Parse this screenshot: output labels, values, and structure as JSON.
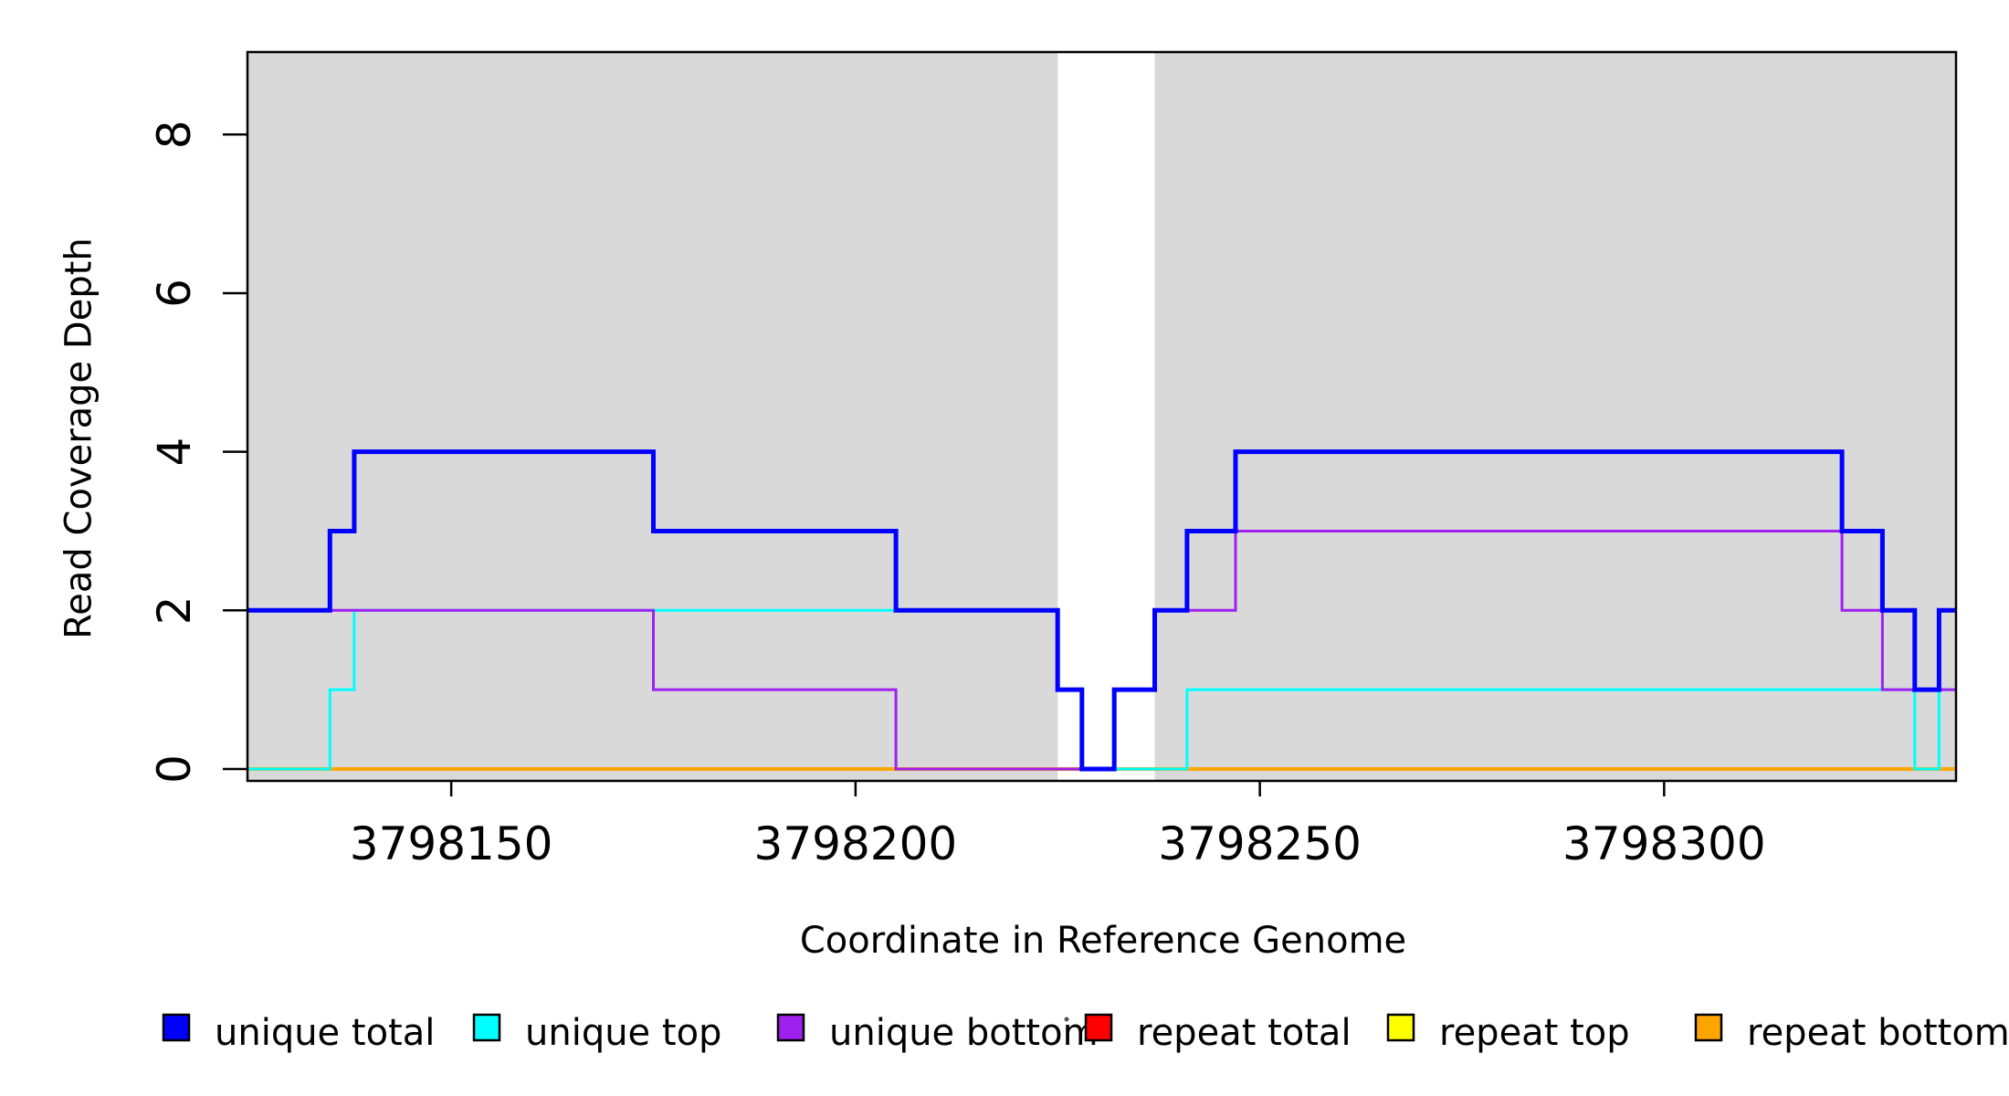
{
  "chart_data": {
    "type": "line",
    "subtype": "step-coverage",
    "xlabel": "Coordinate in Reference Genome",
    "ylabel": "Read Coverage Depth",
    "xlim": [
      3798124.8,
      3798336.1
    ],
    "ylim": [
      -0.15,
      9.04
    ],
    "grid": false,
    "x_ticks": [
      3798150,
      3798200,
      3798250,
      3798300
    ],
    "x_tick_labels": [
      "3798150",
      "3798200",
      "3798250",
      "3798300"
    ],
    "y_ticks": [
      0,
      2,
      4,
      6,
      8
    ],
    "y_tick_labels": [
      "0",
      "2",
      "4",
      "6",
      "8"
    ],
    "shade_color": "#D9D9D9",
    "shaded_regions": [
      [
        3798124.8,
        3798225
      ],
      [
        3798237,
        3798336.1
      ]
    ],
    "series": [
      {
        "name": "repeat total",
        "color": "#FF0000",
        "width": 3,
        "points": [
          [
            3798124.8,
            0
          ],
          [
            3798336.1,
            0
          ]
        ]
      },
      {
        "name": "repeat top",
        "color": "#FFFF00",
        "width": 3,
        "points": [
          [
            3798124.8,
            0
          ],
          [
            3798336.1,
            0
          ]
        ]
      },
      {
        "name": "repeat bottom",
        "color": "#FFA500",
        "width": 4,
        "points": [
          [
            3798124.8,
            0
          ],
          [
            3798336.1,
            0
          ]
        ]
      },
      {
        "name": "unique top",
        "color": "#00FFFF",
        "width": 3,
        "points": [
          [
            3798124.8,
            0
          ],
          [
            3798135,
            0
          ],
          [
            3798135,
            1
          ],
          [
            3798138,
            1
          ],
          [
            3798138,
            2
          ],
          [
            3798225,
            2
          ],
          [
            3798225,
            1
          ],
          [
            3798228,
            1
          ],
          [
            3798228,
            0
          ],
          [
            3798241,
            0
          ],
          [
            3798241,
            1
          ],
          [
            3798331,
            1
          ],
          [
            3798331,
            0
          ],
          [
            3798334,
            0
          ],
          [
            3798334,
            1
          ],
          [
            3798336.1,
            1
          ]
        ]
      },
      {
        "name": "unique bottom",
        "color": "#A020F0",
        "width": 3,
        "points": [
          [
            3798124.8,
            2
          ],
          [
            3798175,
            2
          ],
          [
            3798175,
            1
          ],
          [
            3798205,
            1
          ],
          [
            3798205,
            0
          ],
          [
            3798232,
            0
          ],
          [
            3798232,
            1
          ],
          [
            3798237,
            1
          ],
          [
            3798237,
            2
          ],
          [
            3798247,
            2
          ],
          [
            3798247,
            3
          ],
          [
            3798322,
            3
          ],
          [
            3798322,
            2
          ],
          [
            3798327,
            2
          ],
          [
            3798327,
            1
          ],
          [
            3798336.1,
            1
          ]
        ]
      },
      {
        "name": "unique total",
        "color": "#0000FF",
        "width": 5,
        "points": [
          [
            3798124.8,
            2
          ],
          [
            3798135,
            2
          ],
          [
            3798135,
            3
          ],
          [
            3798138,
            3
          ],
          [
            3798138,
            4
          ],
          [
            3798175,
            4
          ],
          [
            3798175,
            3
          ],
          [
            3798205,
            3
          ],
          [
            3798205,
            2
          ],
          [
            3798225,
            2
          ],
          [
            3798225,
            1
          ],
          [
            3798228,
            1
          ],
          [
            3798228,
            0
          ],
          [
            3798232,
            0
          ],
          [
            3798232,
            1
          ],
          [
            3798237,
            1
          ],
          [
            3798237,
            2
          ],
          [
            3798241,
            2
          ],
          [
            3798241,
            3
          ],
          [
            3798247,
            3
          ],
          [
            3798247,
            4
          ],
          [
            3798322,
            4
          ],
          [
            3798322,
            3
          ],
          [
            3798327,
            3
          ],
          [
            3798327,
            2
          ],
          [
            3798331,
            2
          ],
          [
            3798331,
            1
          ],
          [
            3798334,
            1
          ],
          [
            3798334,
            2
          ],
          [
            3798336.1,
            2
          ]
        ]
      }
    ]
  },
  "legend": {
    "items": [
      {
        "label": "unique total",
        "color": "#0000FF"
      },
      {
        "label": "unique top",
        "color": "#00FFFF"
      },
      {
        "label": "unique bottom",
        "color": "#A020F0"
      },
      {
        "label": "repeat total",
        "color": "#FF0000"
      },
      {
        "label": "repeat top",
        "color": "#FFFF00"
      },
      {
        "label": "repeat bottom",
        "color": "#FFA500"
      }
    ]
  }
}
